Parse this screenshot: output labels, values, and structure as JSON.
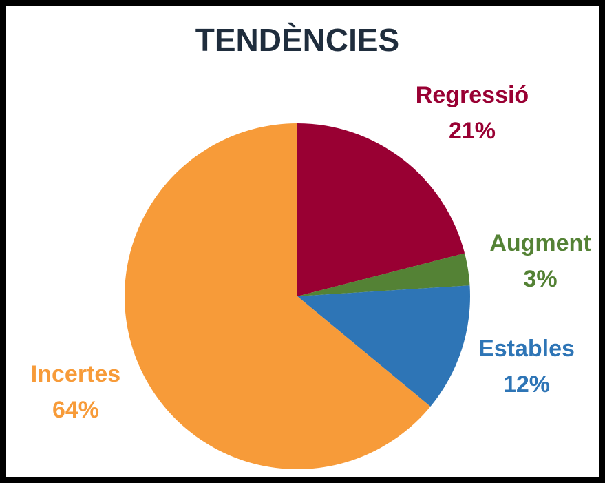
{
  "chart_data": {
    "type": "pie",
    "title": "TENDÈNCIES",
    "categories": [
      "Regressió",
      "Augment",
      "Estables",
      "Incertes"
    ],
    "values": [
      21,
      3,
      12,
      64
    ],
    "value_labels": [
      "21%",
      "3%",
      "12%",
      "64%"
    ],
    "colors": [
      "#990033",
      "#548235",
      "#2e75b6",
      "#f79b39"
    ]
  }
}
